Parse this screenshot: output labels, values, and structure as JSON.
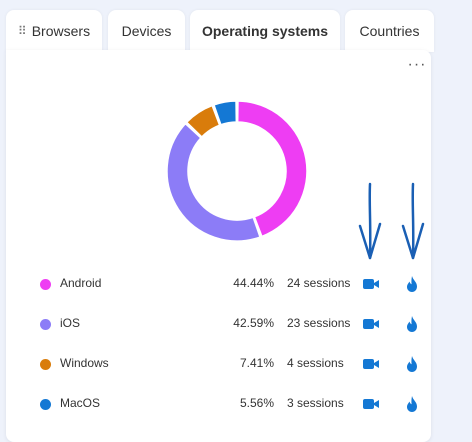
{
  "tabs": [
    {
      "label": "Browsers",
      "active": false
    },
    {
      "label": "Devices",
      "active": false
    },
    {
      "label": "Operating systems",
      "active": true
    },
    {
      "label": "Countries",
      "active": false
    }
  ],
  "more_label": "···",
  "chart_data": {
    "type": "pie",
    "categories": [
      "Android",
      "iOS",
      "Windows",
      "MacOS"
    ],
    "values": [
      44.44,
      42.59,
      7.41,
      5.56
    ],
    "colors": [
      "#ee3df3",
      "#8c7cf7",
      "#d97c0b",
      "#1478d4"
    ]
  },
  "legend": [
    {
      "name": "Android",
      "percent": "44.44%",
      "sessions": "24 sessions",
      "color": "#ee3df3"
    },
    {
      "name": "iOS",
      "percent": "42.59%",
      "sessions": "23 sessions",
      "color": "#8c7cf7"
    },
    {
      "name": "Windows",
      "percent": "7.41%",
      "sessions": "4 sessions",
      "color": "#d97c0b"
    },
    {
      "name": "MacOS",
      "percent": "5.56%",
      "sessions": "3 sessions",
      "color": "#1478d4"
    }
  ],
  "icons": {
    "recording": "video-camera-icon",
    "heatmap": "flame-icon"
  },
  "annotation_color": "#1a5fb4"
}
